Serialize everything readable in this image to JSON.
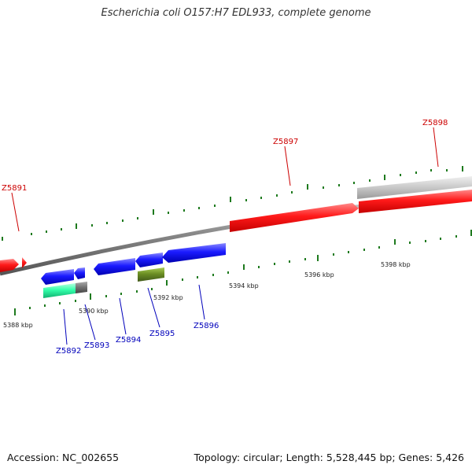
{
  "title": "Escherichia coli O157:H7 EDL933, complete genome",
  "footer": {
    "accession": "Accession: NC_002655",
    "summary": "Topology: circular; Length: 5,528,445 bp; Genes: 5,426"
  },
  "colors": {
    "backbone": "#8c8c8c",
    "forward_gene": "#ff0000",
    "reverse_gene": "#0000ee",
    "locus_label_forward": "#cc0000",
    "locus_label_reverse": "#0000bb",
    "tick": "#1e7a1e",
    "gray_feature": "#c4c4c4",
    "cyan_feature": "#33ffaa",
    "olive_feature": "#6b8e23"
  },
  "scale_labels": [
    "5388 kbp",
    "5390 kbp",
    "5392 kbp",
    "5394 kbp",
    "5396 kbp",
    "5398 kbp"
  ],
  "genes": [
    {
      "label": "Z5891",
      "strand": "forward",
      "color": "red"
    },
    {
      "label": "Z5892",
      "strand": "reverse",
      "color": "blue"
    },
    {
      "label": "Z5893",
      "strand": "reverse",
      "color": "blue"
    },
    {
      "label": "Z5894",
      "strand": "reverse",
      "color": "blue"
    },
    {
      "label": "Z5895",
      "strand": "reverse",
      "color": "blue"
    },
    {
      "label": "Z5896",
      "strand": "reverse",
      "color": "blue"
    },
    {
      "label": "Z5897",
      "strand": "forward",
      "color": "red"
    },
    {
      "label": "Z5898",
      "strand": "forward",
      "color": "red"
    }
  ]
}
